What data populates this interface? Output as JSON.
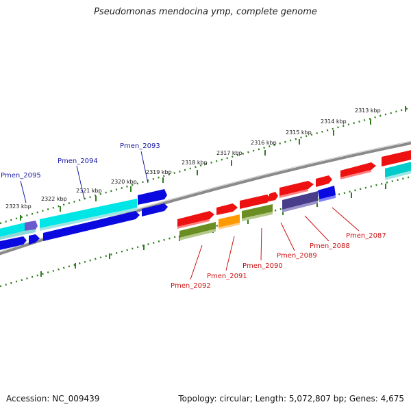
{
  "title": "Pseudomonas mendocina ymp, complete genome",
  "footer": {
    "accession": "Accession: NC_009439",
    "topology": "Topology: circular; Length: 5,072,807 bp; Genes: 4,675"
  },
  "colors": {
    "backbone": "#8a8a8a",
    "ticks": "#2e7d1e",
    "label_blue": "#1a1aa8",
    "label_red": "#cc1111"
  },
  "scale_labels": [
    "2313 kbp",
    "2314 kbp",
    "2315 kbp",
    "2316 kbp",
    "2317 kbp",
    "2318 kbp",
    "2319 kbp",
    "2320 kbp",
    "2321 kbp",
    "2322 kbp",
    "2323 kbp"
  ],
  "gene_labels": [
    {
      "text": "Pmen_2095",
      "side": "top"
    },
    {
      "text": "Pmen_2094",
      "side": "top"
    },
    {
      "text": "Pmen_2093",
      "side": "top"
    },
    {
      "text": "Pmen_2092",
      "side": "bottom"
    },
    {
      "text": "Pmen_2091",
      "side": "bottom"
    },
    {
      "text": "Pmen_2090",
      "side": "bottom"
    },
    {
      "text": "Pmen_2089",
      "side": "bottom"
    },
    {
      "text": "Pmen_2088",
      "side": "bottom"
    },
    {
      "text": "Pmen_2087",
      "side": "bottom"
    }
  ]
}
